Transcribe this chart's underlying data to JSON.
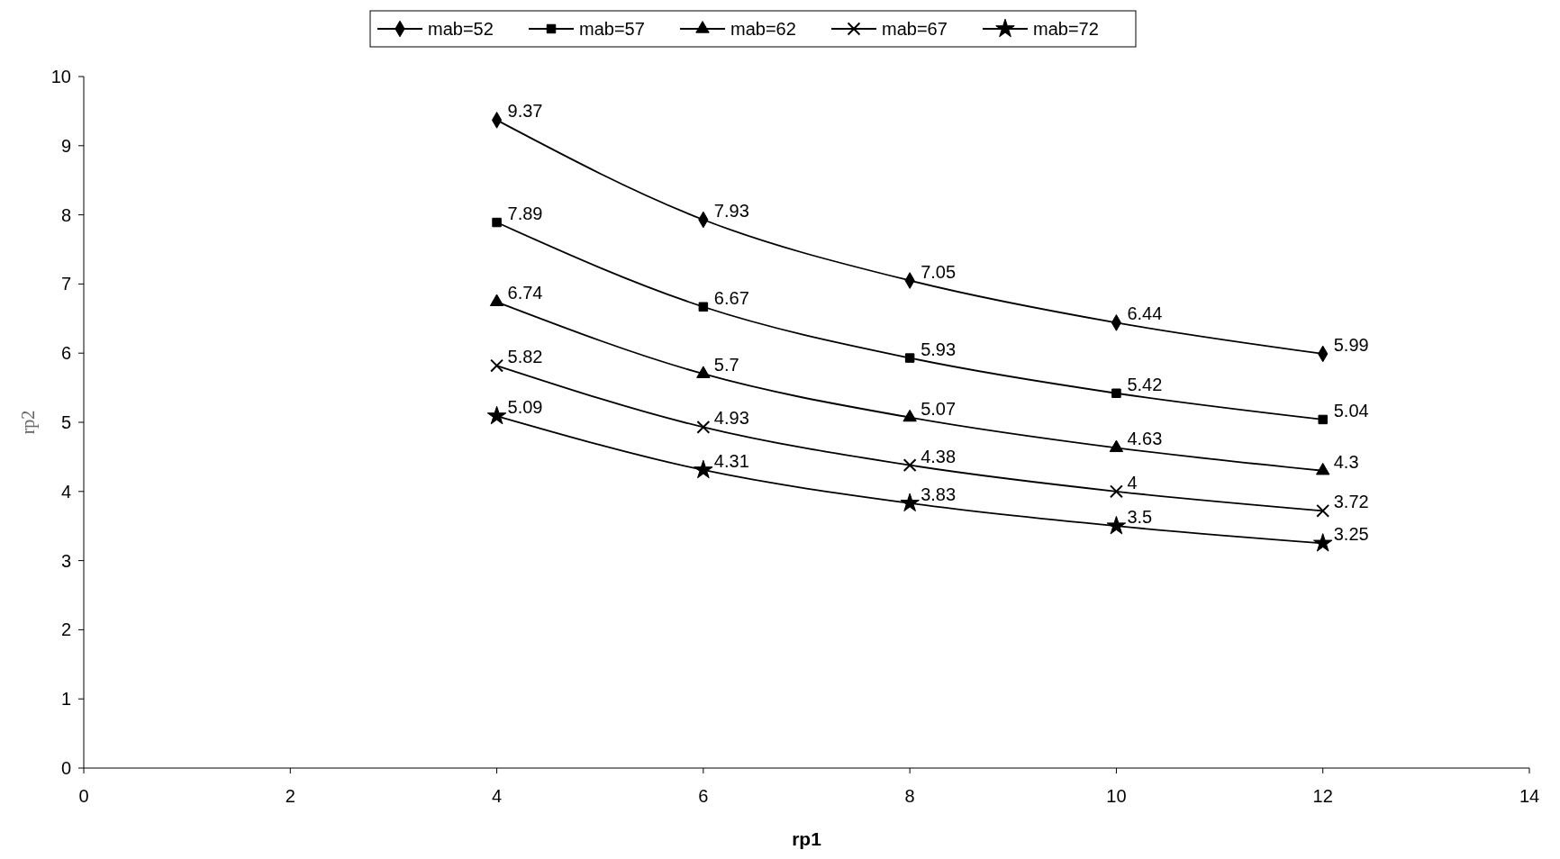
{
  "chart_data": {
    "type": "line",
    "xlabel": "rp1",
    "ylabel": "rp2",
    "x": [
      4,
      6,
      8,
      10,
      12
    ],
    "series": [
      {
        "name": "mab=52",
        "color": "#000000",
        "marker": "diamond",
        "values": [
          9.37,
          7.93,
          7.05,
          6.44,
          5.99
        ]
      },
      {
        "name": "mab=57",
        "color": "#000000",
        "marker": "square",
        "values": [
          7.89,
          6.67,
          5.93,
          5.42,
          5.04
        ]
      },
      {
        "name": "mab=62",
        "color": "#000000",
        "marker": "triangle",
        "values": [
          6.74,
          5.7,
          5.07,
          4.63,
          4.3
        ]
      },
      {
        "name": "mab=67",
        "color": "#000000",
        "marker": "cross",
        "values": [
          5.82,
          4.93,
          4.38,
          4,
          3.72
        ]
      },
      {
        "name": "mab=72",
        "color": "#000000",
        "marker": "star",
        "values": [
          5.09,
          4.31,
          3.83,
          3.5,
          3.25
        ]
      }
    ],
    "xlim": [
      0,
      14
    ],
    "xticks": [
      0,
      2,
      4,
      6,
      8,
      10,
      12,
      14
    ],
    "ylim": [
      0,
      10
    ],
    "yticks": [
      0,
      1,
      2,
      3,
      4,
      5,
      6,
      7,
      8,
      9,
      10
    ],
    "data_labels": true,
    "legend": "top",
    "grid": false,
    "line_style": "solid"
  }
}
